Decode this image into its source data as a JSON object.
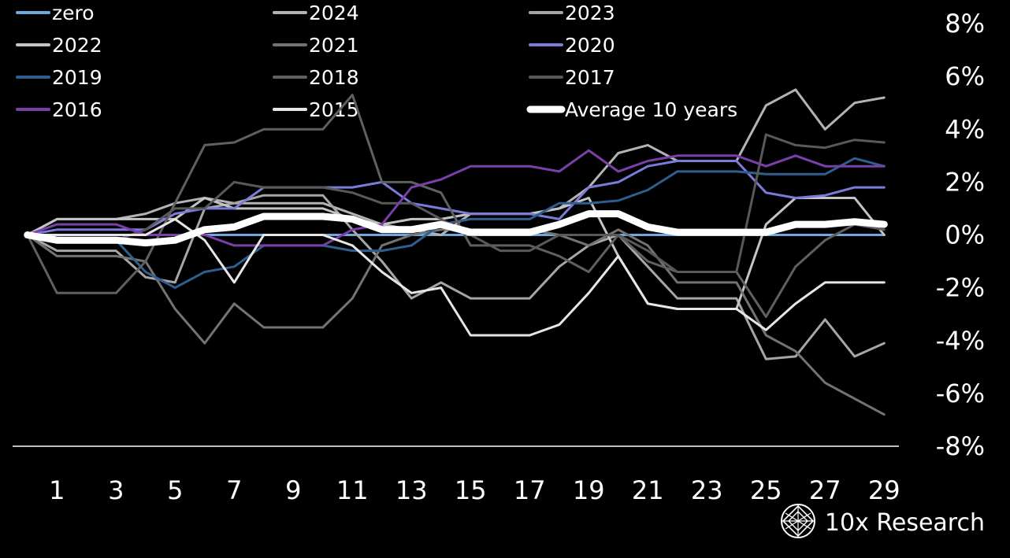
{
  "chart_data": {
    "type": "line",
    "title": "",
    "xlabel": "",
    "ylabel": "",
    "x": [
      0,
      1,
      2,
      3,
      4,
      5,
      6,
      7,
      8,
      9,
      10,
      11,
      12,
      13,
      14,
      15,
      16,
      17,
      18,
      19,
      20,
      21,
      22,
      23,
      24,
      25,
      26,
      27,
      28,
      29
    ],
    "x_tick_labels": [
      "1",
      "3",
      "5",
      "7",
      "9",
      "11",
      "13",
      "15",
      "17",
      "19",
      "21",
      "23",
      "25",
      "27",
      "29"
    ],
    "x_ticks": [
      1,
      3,
      5,
      7,
      9,
      11,
      13,
      15,
      17,
      19,
      21,
      23,
      25,
      27,
      29
    ],
    "xlim": [
      -0.5,
      29.5
    ],
    "ylim": [
      -8,
      8
    ],
    "y_ticks": [
      8,
      6,
      4,
      2,
      0,
      -2,
      -4,
      -6,
      -8
    ],
    "y_tick_labels": [
      "8%",
      "6%",
      "4%",
      "2%",
      "0%",
      "-2%",
      "-4%",
      "-6%",
      "-8%"
    ],
    "y_axis_side": "right",
    "grid": false,
    "legend_position": "top",
    "series": [
      {
        "name": "zero",
        "color": "#6fa8dc",
        "width": 3,
        "values": [
          0,
          0,
          0,
          0,
          0,
          0,
          0,
          0,
          0,
          0,
          0,
          0,
          0,
          0,
          0,
          0,
          0,
          0,
          0,
          0,
          0,
          0,
          0,
          0,
          0,
          0,
          0,
          0,
          0,
          0
        ]
      },
      {
        "name": "2024",
        "color": "#b3b3b3",
        "width": 3,
        "values": [
          0,
          0.6,
          0.6,
          0.6,
          0.8,
          1.2,
          1.4,
          1.2,
          1.2,
          1.2,
          1.2,
          0.8,
          0.4,
          0.2,
          0,
          0.8,
          0.8,
          0.8,
          1.0,
          1.8,
          3.1,
          3.4,
          2.8,
          2.8,
          2.8,
          4.9,
          5.5,
          4.0,
          5.0,
          5.2
        ]
      },
      {
        "name": "2023",
        "color": "#a6a6a6",
        "width": 3,
        "values": [
          0,
          -0.6,
          -0.6,
          -0.6,
          -1.6,
          -1.8,
          1.0,
          1.2,
          1.5,
          1.5,
          1.5,
          0.2,
          -1.0,
          -2.4,
          -1.8,
          -2.4,
          -2.4,
          -2.4,
          -1.2,
          -0.4,
          0,
          -1.2,
          -2.4,
          -2.4,
          -2.4,
          -4.7,
          -4.6,
          -3.2,
          -4.6,
          -4.1
        ]
      },
      {
        "name": "2022",
        "color": "#c4c4c4",
        "width": 3,
        "values": [
          0,
          0.6,
          0.6,
          0.6,
          0.6,
          0.6,
          1.4,
          1.0,
          1.0,
          1.0,
          1.0,
          0.6,
          0.4,
          0.6,
          0.6,
          0.8,
          0.8,
          0.8,
          1.0,
          1.4,
          -0.8,
          -2.6,
          -2.8,
          -2.8,
          -2.8,
          0.4,
          1.4,
          1.4,
          1.4,
          0.0
        ]
      },
      {
        "name": "2021",
        "color": "#737373",
        "width": 3,
        "values": [
          0,
          -0.8,
          -0.8,
          -0.8,
          -1.0,
          -2.8,
          -4.1,
          -2.6,
          -3.5,
          -3.5,
          -3.5,
          -2.4,
          -0.4,
          0,
          0.2,
          0.2,
          0.2,
          0.2,
          0,
          -0.4,
          0.2,
          -0.4,
          -1.8,
          -1.8,
          -1.8,
          -3.8,
          -4.4,
          -5.6,
          -6.2,
          -6.8
        ]
      },
      {
        "name": "2020",
        "color": "#7b7bd9",
        "width": 3,
        "values": [
          0,
          0.2,
          0.2,
          0.2,
          0.2,
          0.8,
          1.0,
          1.0,
          1.8,
          1.8,
          1.8,
          1.8,
          2.0,
          1.2,
          1.0,
          0.8,
          0.8,
          0.8,
          0.6,
          1.8,
          2.0,
          2.6,
          2.8,
          2.8,
          2.8,
          1.6,
          1.4,
          1.5,
          1.8,
          1.8
        ]
      },
      {
        "name": "2019",
        "color": "#2e5f8f",
        "width": 3,
        "values": [
          0,
          -0.2,
          -0.2,
          -0.2,
          -1.4,
          -2.0,
          -1.4,
          -1.2,
          -0.4,
          -0.4,
          -0.4,
          -0.6,
          -0.6,
          -0.4,
          0.4,
          0.6,
          0.6,
          0.6,
          1.2,
          1.2,
          1.3,
          1.7,
          2.4,
          2.4,
          2.4,
          2.3,
          2.3,
          2.3,
          2.9,
          2.6
        ]
      },
      {
        "name": "2018",
        "color": "#606060",
        "width": 3,
        "values": [
          0,
          -2.2,
          -2.2,
          -2.2,
          -1.0,
          1.2,
          3.4,
          3.5,
          4.0,
          4.0,
          4.0,
          5.3,
          2.0,
          2.0,
          1.6,
          -0.4,
          -0.4,
          -0.4,
          -0.8,
          -1.4,
          0,
          -1.0,
          -1.4,
          -1.4,
          -1.4,
          -3.1,
          -1.2,
          -0.2,
          0.4,
          0.2
        ]
      },
      {
        "name": "2017",
        "color": "#595959",
        "width": 3,
        "values": [
          0,
          -0.2,
          -0.2,
          -0.2,
          0.2,
          1.0,
          1.0,
          2.0,
          1.8,
          1.8,
          1.8,
          1.6,
          1.2,
          1.2,
          0.6,
          0,
          -0.6,
          -0.6,
          0,
          0,
          0,
          -0.6,
          -1.4,
          -1.4,
          -1.4,
          3.8,
          3.4,
          3.3,
          3.6,
          3.5
        ]
      },
      {
        "name": "2016",
        "color": "#7a3fa8",
        "width": 3,
        "values": [
          0,
          0.4,
          0.4,
          0.4,
          0,
          0,
          0,
          -0.4,
          -0.4,
          -0.4,
          -0.4,
          0.2,
          0.4,
          1.8,
          2.1,
          2.6,
          2.6,
          2.6,
          2.4,
          3.2,
          2.4,
          2.8,
          3.0,
          3.0,
          3.0,
          2.6,
          3.0,
          2.6,
          2.6,
          2.6
        ]
      },
      {
        "name": "2015",
        "color": "#e6e6e6",
        "width": 3,
        "values": [
          0,
          0,
          0,
          0,
          0,
          0.6,
          -0.2,
          -1.8,
          0,
          0,
          0,
          -0.4,
          -1.4,
          -2.2,
          -2.0,
          -3.8,
          -3.8,
          -3.8,
          -3.4,
          -2.2,
          -0.8,
          -2.6,
          -2.8,
          -2.8,
          -2.8,
          -3.6,
          -2.6,
          -1.8,
          -1.8,
          -1.8
        ]
      },
      {
        "name": "Average 10 years",
        "color": "#ffffff",
        "width": 9,
        "values": [
          0,
          -0.2,
          -0.2,
          -0.2,
          -0.3,
          -0.2,
          0.2,
          0.3,
          0.7,
          0.7,
          0.7,
          0.6,
          0.2,
          0.2,
          0.4,
          0.1,
          0.1,
          0.1,
          0.4,
          0.8,
          0.8,
          0.3,
          0.1,
          0.1,
          0.1,
          0.1,
          0.4,
          0.4,
          0.5,
          0.4
        ]
      }
    ]
  },
  "brand": {
    "name": "10x Research",
    "logo_icon": "globe-grid-icon"
  }
}
